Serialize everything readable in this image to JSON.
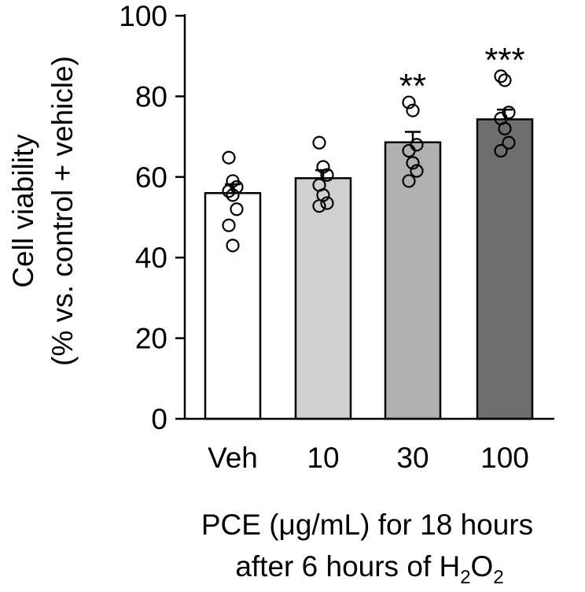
{
  "chart_data": {
    "type": "bar",
    "categories": [
      "Veh",
      "10",
      "30",
      "100"
    ],
    "values": [
      56,
      59.7,
      68.6,
      74.3
    ],
    "errors": [
      2.2,
      2.0,
      2.6,
      2.4
    ],
    "bar_colors": [
      "#ffffff",
      "#d0d0d0",
      "#b0b0b0",
      "#6e6e6e"
    ],
    "points": [
      [
        64.8,
        59,
        57.5,
        56.5,
        55.5,
        52,
        48,
        43
      ],
      [
        68.5,
        62.5,
        60.5,
        58,
        55.5,
        53.5,
        52.8
      ],
      [
        78.5,
        76.5,
        68,
        66.5,
        63.5,
        61.5,
        59
      ],
      [
        85,
        84,
        76,
        74.5,
        72,
        68.5,
        66.5
      ]
    ],
    "significance": [
      "",
      "",
      "**",
      "***"
    ],
    "ylim": [
      0,
      100
    ],
    "yticks": [
      "0",
      "20",
      "40",
      "60",
      "80",
      "100"
    ],
    "ylabel_line1": "Cell viability",
    "ylabel_line2": "(% vs. control + vehicle)",
    "xlabel_line1": "PCE (μg/mL) for 18 hours",
    "xlabel_line2_prefix": "after 6 hours of H",
    "xlabel_line2_sub": "2",
    "xlabel_line2_mid": "O",
    "xlabel_line2_sub2": "2"
  }
}
